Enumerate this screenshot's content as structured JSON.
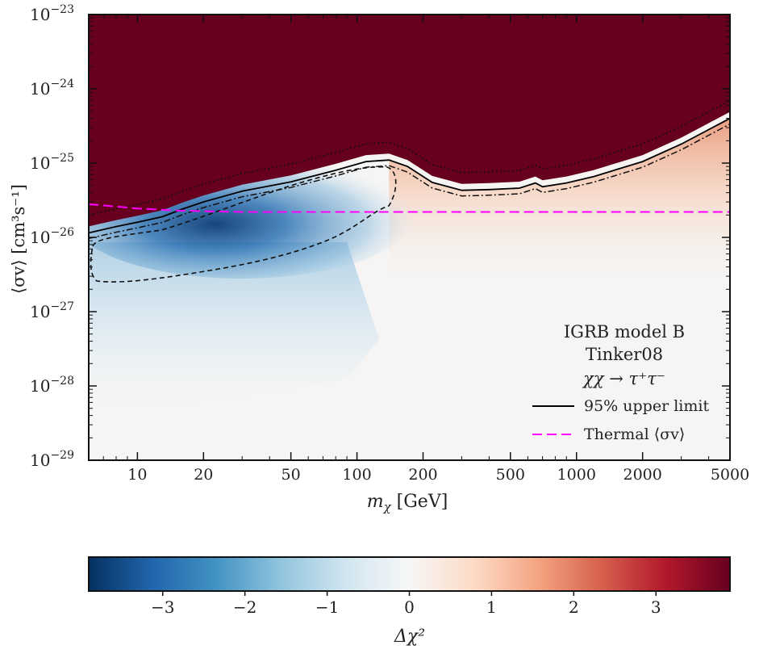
{
  "chart_data": {
    "type": "heatmap",
    "title": "",
    "xlabel_main": "m",
    "xlabel_sub": "χ",
    "xlabel_unit": " [GeV]",
    "ylabel": "⟨σv⟩ [cm³s⁻¹]",
    "x_scale": "log",
    "y_scale": "log",
    "xlim": [
      6,
      5000
    ],
    "ylim": [
      1e-29,
      1e-23
    ],
    "x_ticks": [
      {
        "value": 10,
        "label": "10"
      },
      {
        "value": 20,
        "label": "20"
      },
      {
        "value": 50,
        "label": "50"
      },
      {
        "value": 100,
        "label": "100"
      },
      {
        "value": 200,
        "label": "200"
      },
      {
        "value": 500,
        "label": "500"
      },
      {
        "value": 1000,
        "label": "1000"
      },
      {
        "value": 2000,
        "label": "2000"
      },
      {
        "value": 5000,
        "label": "5000"
      }
    ],
    "y_ticks": [
      {
        "value": 1e-29,
        "base": "10",
        "exp": "−29"
      },
      {
        "value": 1e-28,
        "base": "10",
        "exp": "−28"
      },
      {
        "value": 1e-27,
        "base": "10",
        "exp": "−27"
      },
      {
        "value": 1e-26,
        "base": "10",
        "exp": "−26"
      },
      {
        "value": 1e-25,
        "base": "10",
        "exp": "−25"
      },
      {
        "value": 1e-24,
        "base": "10",
        "exp": "−24"
      },
      {
        "value": 1e-23,
        "base": "10",
        "exp": "−23"
      }
    ],
    "annotations": [
      "IGRB model B",
      "Tinker08",
      "χχ → τ⁺τ⁻"
    ],
    "legend": {
      "placement": "bottom-right",
      "entries": [
        {
          "label": "95% upper limit",
          "style": "solid",
          "color": "#000000"
        },
        {
          "label": "Thermal ⟨σv⟩",
          "style": "dashed",
          "color": "#ff00ff"
        }
      ]
    },
    "series": [
      {
        "name": "95% upper limit",
        "x": [
          6,
          8,
          10,
          13,
          16,
          20,
          30,
          50,
          80,
          110,
          140,
          170,
          220,
          300,
          400,
          550,
          650,
          700,
          900,
          1200,
          2000,
          3000,
          5000
        ],
        "y": [
          1.15e-26,
          1.4e-26,
          1.6e-26,
          1.9e-26,
          2.4e-26,
          3e-26,
          4.2e-26,
          5.6e-26,
          8e-26,
          1.05e-25,
          1.1e-25,
          9e-26,
          5.5e-26,
          4.3e-26,
          4.4e-26,
          4.6e-26,
          5.4e-26,
          4.8e-26,
          5.4e-26,
          6.6e-26,
          1.05e-25,
          1.8e-25,
          4e-25
        ]
      },
      {
        "name": "Thermal ⟨σv⟩",
        "x": [
          6,
          8,
          10,
          15,
          20,
          30,
          50,
          100,
          200,
          500,
          1000,
          5000
        ],
        "y": [
          2.8e-26,
          2.6e-26,
          2.45e-26,
          2.3e-26,
          2.25e-26,
          2.2e-26,
          2.2e-26,
          2.2e-26,
          2.2e-26,
          2.2e-26,
          2.2e-26,
          2.2e-26
        ]
      }
    ],
    "excluded_region_color": "#67001f",
    "colorbar": {
      "label": "Δχ²",
      "range": [
        -3.9,
        3.9
      ],
      "ticks": [
        {
          "value": -3,
          "label": "−3"
        },
        {
          "value": -2,
          "label": "−2"
        },
        {
          "value": -1,
          "label": "−1"
        },
        {
          "value": 0,
          "label": "0"
        },
        {
          "value": 1,
          "label": "1"
        },
        {
          "value": 2,
          "label": "2"
        },
        {
          "value": 3,
          "label": "3"
        }
      ],
      "colormap": "RdBu_r",
      "stops": [
        "#053061",
        "#2166ac",
        "#4393c3",
        "#92c5de",
        "#d1e5f0",
        "#f7f7f7",
        "#fddbc7",
        "#f4a582",
        "#d6604d",
        "#b2182b",
        "#67001f"
      ]
    }
  }
}
